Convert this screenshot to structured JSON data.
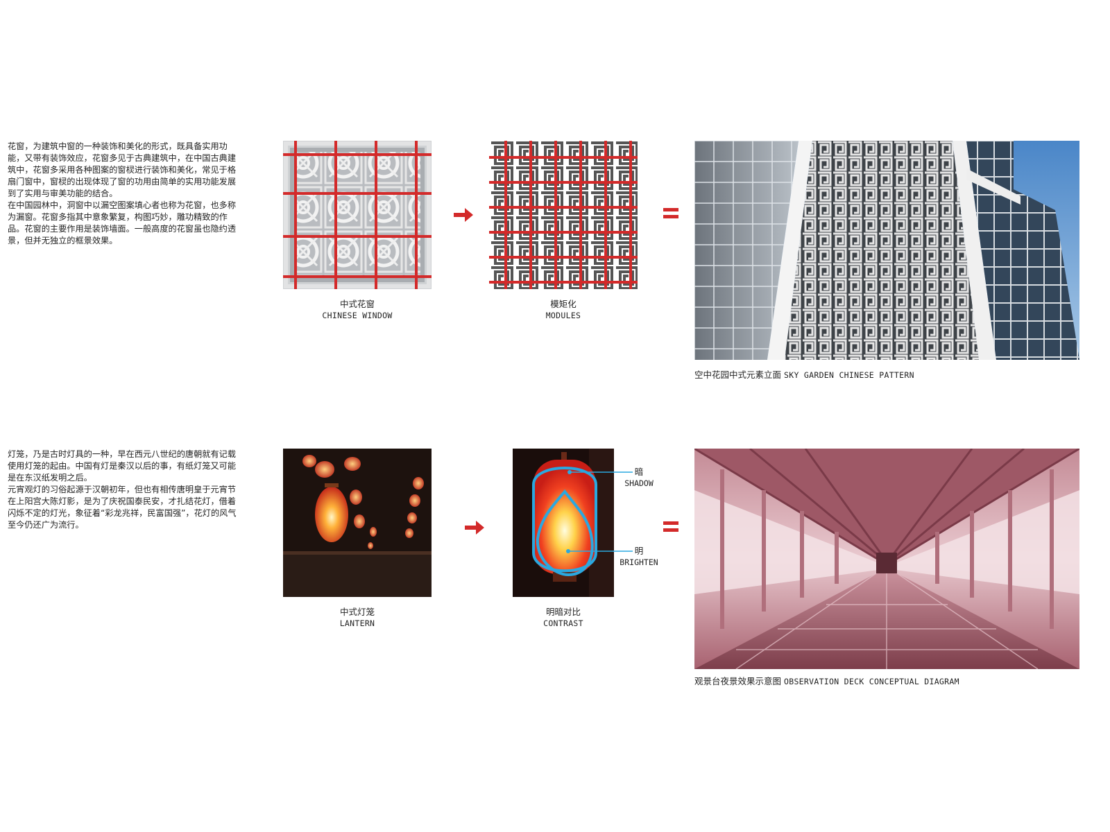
{
  "row1": {
    "paragraph": [
      "花窗，为建筑中窗的一种装饰和美化的形式，既具备实用功能，又带有装饰效应，花窗多见于古典建筑中，在中国古典建筑中，花窗多采用各种图案的窗棂进行装饰和美化，常见于格扇门窗中，窗棂的出现体现了窗的功用由简单的实用功能发展到了实用与审美功能的结合。",
      "在中国园林中，洞窗中以漏空图案填心者也称为花窗，也多称为漏窗。花窗多指其中意象繁复，构图巧妙，雕功精致的作品。花窗的主要作用是装饰墙面。一般高度的花窗虽也隐约透景，但并无独立的框景效果。"
    ],
    "image1": {
      "cn": "中式花窗",
      "en": "CHINESE WINDOW"
    },
    "image2": {
      "cn": "模矩化",
      "en": "MODULES"
    },
    "image3": {
      "cn": "空中花园中式元素立面",
      "en": "SKY GARDEN CHINESE PATTERN"
    }
  },
  "row2": {
    "paragraph": [
      "灯笼，乃是古时灯具的一种，早在西元八世纪的唐朝就有记载使用灯笼的起由。中国有灯是秦汉以后的事，有纸灯笼又可能是在东汉纸发明之后。",
      "元宵观灯的习俗起源于汉朝初年，但也有相传唐明皇于元宵节在上阳宫大陈灯影，是为了庆祝国泰民安，才扎结花灯，借着闪烁不定的灯光，象征着“彩龙兆祥，民富国强”，花灯的风气至今仍还广为流行。"
    ],
    "image1": {
      "cn": "中式灯笼",
      "en": "LANTERN"
    },
    "image2": {
      "cn": "明暗对比",
      "en": "CONTRAST"
    },
    "annotation_shadow": {
      "cn": "暗",
      "en": "SHADOW"
    },
    "annotation_brighten": {
      "cn": "明",
      "en": "BRIGHTEN"
    },
    "image3": {
      "cn": "观景台夜景效果示意图",
      "en": "OBSERVATION DECK CONCEPTUAL DIAGRAM"
    }
  },
  "colors": {
    "accent_red": "#d32a2a",
    "annotation_blue": "#2aa8e0"
  }
}
